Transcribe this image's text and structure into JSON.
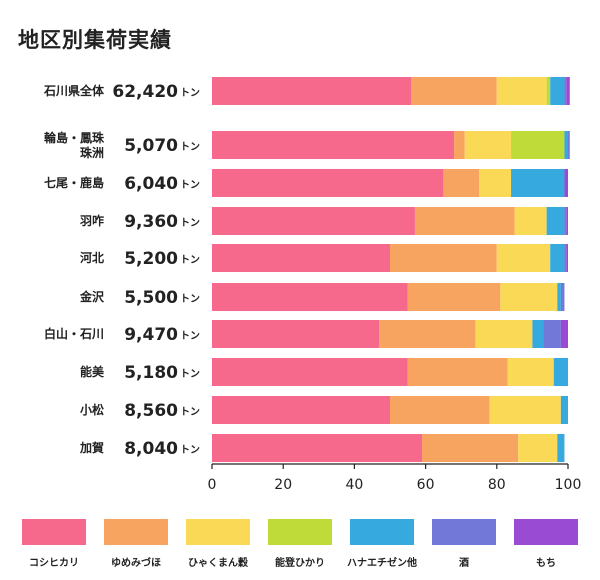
{
  "chart_data": {
    "type": "bar",
    "orientation": "horizontal",
    "stacked": true,
    "title": "地区別集荷実績",
    "unit": "トン",
    "xlim": [
      0,
      100
    ],
    "xticks": [
      "0",
      "20",
      "40",
      "60",
      "80",
      "100"
    ],
    "grid": false,
    "legend_position": "bottom",
    "categories": [
      {
        "name": [
          "石川県全体"
        ],
        "total": "62,420"
      },
      {
        "name": [
          "輪島・鳳珠",
          "珠洲"
        ],
        "total": "5,070"
      },
      {
        "name": [
          "七尾・鹿島"
        ],
        "total": "6,040"
      },
      {
        "name": [
          "羽咋"
        ],
        "total": "9,360"
      },
      {
        "name": [
          "河北"
        ],
        "total": "5,200"
      },
      {
        "name": [
          "金沢"
        ],
        "total": "5,500"
      },
      {
        "name": [
          "白山・石川"
        ],
        "total": "9,470"
      },
      {
        "name": [
          "能美"
        ],
        "total": "5,180"
      },
      {
        "name": [
          "小松"
        ],
        "total": "8,560"
      },
      {
        "name": [
          "加賀"
        ],
        "total": "8,040"
      }
    ],
    "series": [
      {
        "name": "コシヒカリ",
        "color": "#f7698c",
        "values": [
          56,
          68,
          65,
          57,
          50,
          55,
          47,
          55,
          50,
          59
        ]
      },
      {
        "name": "ゆめみづほ",
        "color": "#f8a461",
        "values": [
          24,
          3,
          10,
          28,
          30,
          26,
          27,
          28,
          28,
          27
        ]
      },
      {
        "name": "ひゃくまん穀",
        "color": "#fad956",
        "values": [
          14,
          13,
          9,
          9,
          15,
          16,
          16,
          13,
          20,
          11
        ]
      },
      {
        "name": "能登ひかり",
        "color": "#bedb39",
        "values": [
          1,
          15,
          0,
          0,
          0,
          0,
          0,
          0,
          0,
          0
        ]
      },
      {
        "name": "ハナエチゼン他",
        "color": "#36a9df",
        "values": [
          4,
          1,
          15,
          5,
          4,
          1,
          3,
          4,
          2,
          2
        ]
      },
      {
        "name": "酒",
        "color": "#7278d8",
        "values": [
          0.5,
          0.5,
          0,
          0.5,
          0.5,
          1,
          5,
          0,
          0,
          0
        ]
      },
      {
        "name": "もち",
        "color": "#9a4bd4",
        "values": [
          1,
          0,
          1,
          0.5,
          0.5,
          0,
          2,
          0,
          0,
          0
        ]
      }
    ]
  }
}
